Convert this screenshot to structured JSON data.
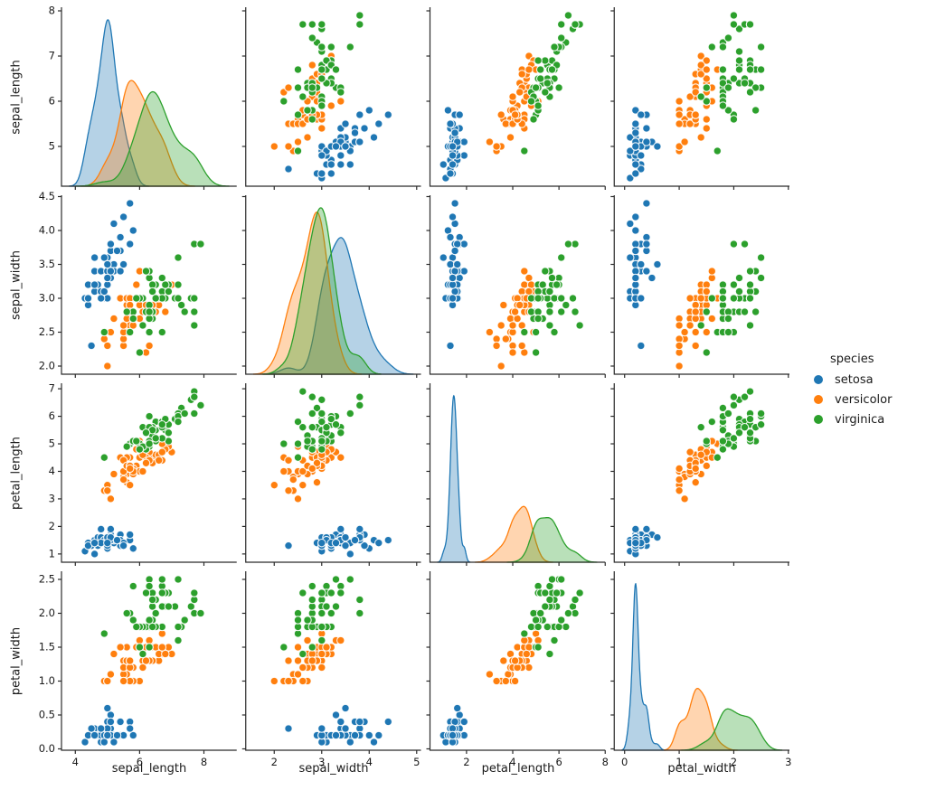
{
  "figure": {
    "background": "#ffffff",
    "axis_color": "#2b2b2b",
    "tick_label_color": "#1a1a1a"
  },
  "legend": {
    "title": "species",
    "entries": [
      {
        "label": "setosa",
        "color": "#1f77b4"
      },
      {
        "label": "versicolor",
        "color": "#ff7f0e"
      },
      {
        "label": "virginica",
        "color": "#2ca02c"
      }
    ]
  },
  "chart_data": {
    "type": "scatter",
    "layout": "pairplot-grid-4x4",
    "diagonal": "kde",
    "title": "",
    "variables": [
      "sepal_length",
      "sepal_width",
      "petal_length",
      "petal_width"
    ],
    "axes": {
      "sepal_length": {
        "x_range": [
          3.57,
          9.02
        ],
        "y_range": [
          4.12,
          8.08
        ],
        "x_ticks": [
          4,
          6,
          8
        ],
        "x_tick_labels": [
          "4",
          "6",
          "8"
        ],
        "y_ticks": [
          5,
          6,
          7,
          8
        ],
        "y_tick_labels": [
          "5",
          "6",
          "7",
          "8"
        ]
      },
      "sepal_width": {
        "x_range": [
          1.4,
          5.09
        ],
        "y_range": [
          1.88,
          4.52
        ],
        "x_ticks": [
          2,
          3,
          4,
          5
        ],
        "x_tick_labels": [
          "2",
          "3",
          "4",
          "5"
        ],
        "y_ticks": [
          2.0,
          2.5,
          3.0,
          3.5,
          4.0,
          4.5
        ],
        "y_tick_labels": [
          "2.0",
          "2.5",
          "3.0",
          "3.5",
          "4.0",
          "4.5"
        ]
      },
      "petal_length": {
        "x_range": [
          0.42,
          8.0
        ],
        "y_range": [
          0.7,
          7.2
        ],
        "x_ticks": [
          2,
          4,
          6,
          8
        ],
        "x_tick_labels": [
          "2",
          "4",
          "6",
          "8"
        ],
        "y_ticks": [
          1,
          2,
          3,
          4,
          5,
          6,
          7
        ],
        "y_tick_labels": [
          "1",
          "2",
          "3",
          "4",
          "5",
          "6",
          "7"
        ]
      },
      "petal_width": {
        "x_range": [
          -0.19,
          3.02
        ],
        "y_range": [
          -0.02,
          2.62
        ],
        "x_ticks": [
          0,
          1,
          2,
          3
        ],
        "x_tick_labels": [
          "0",
          "1",
          "2",
          "3"
        ],
        "y_ticks": [
          0.0,
          0.5,
          1.0,
          1.5,
          2.0,
          2.5
        ],
        "y_tick_labels": [
          "0.0",
          "0.5",
          "1.0",
          "1.5",
          "2.0",
          "2.5"
        ]
      }
    },
    "series": [
      {
        "name": "setosa",
        "color": "#1f77b4",
        "points": [
          [
            5.1,
            3.5,
            1.4,
            0.2
          ],
          [
            4.9,
            3.0,
            1.4,
            0.2
          ],
          [
            4.7,
            3.2,
            1.3,
            0.2
          ],
          [
            4.6,
            3.1,
            1.5,
            0.2
          ],
          [
            5.0,
            3.6,
            1.4,
            0.2
          ],
          [
            5.4,
            3.9,
            1.7,
            0.4
          ],
          [
            4.6,
            3.4,
            1.4,
            0.3
          ],
          [
            5.0,
            3.4,
            1.5,
            0.2
          ],
          [
            4.4,
            2.9,
            1.4,
            0.2
          ],
          [
            4.9,
            3.1,
            1.5,
            0.1
          ],
          [
            5.4,
            3.7,
            1.5,
            0.2
          ],
          [
            4.8,
            3.4,
            1.6,
            0.2
          ],
          [
            4.8,
            3.0,
            1.4,
            0.1
          ],
          [
            4.3,
            3.0,
            1.1,
            0.1
          ],
          [
            5.8,
            4.0,
            1.2,
            0.2
          ],
          [
            5.7,
            4.4,
            1.5,
            0.4
          ],
          [
            5.4,
            3.9,
            1.3,
            0.4
          ],
          [
            5.1,
            3.5,
            1.4,
            0.3
          ],
          [
            5.7,
            3.8,
            1.7,
            0.3
          ],
          [
            5.1,
            3.8,
            1.5,
            0.3
          ],
          [
            5.4,
            3.4,
            1.7,
            0.2
          ],
          [
            5.1,
            3.7,
            1.5,
            0.4
          ],
          [
            4.6,
            3.6,
            1.0,
            0.2
          ],
          [
            5.1,
            3.3,
            1.7,
            0.5
          ],
          [
            4.8,
            3.4,
            1.9,
            0.2
          ],
          [
            5.0,
            3.0,
            1.6,
            0.2
          ],
          [
            5.0,
            3.4,
            1.6,
            0.4
          ],
          [
            5.2,
            3.5,
            1.5,
            0.2
          ],
          [
            5.2,
            3.4,
            1.4,
            0.2
          ],
          [
            4.7,
            3.2,
            1.6,
            0.2
          ],
          [
            4.8,
            3.1,
            1.6,
            0.2
          ],
          [
            5.4,
            3.4,
            1.5,
            0.4
          ],
          [
            5.2,
            4.1,
            1.5,
            0.1
          ],
          [
            5.5,
            4.2,
            1.4,
            0.2
          ],
          [
            4.9,
            3.1,
            1.5,
            0.2
          ],
          [
            5.0,
            3.2,
            1.2,
            0.2
          ],
          [
            5.5,
            3.5,
            1.3,
            0.2
          ],
          [
            4.9,
            3.6,
            1.4,
            0.1
          ],
          [
            4.4,
            3.0,
            1.3,
            0.2
          ],
          [
            5.1,
            3.4,
            1.5,
            0.2
          ],
          [
            5.0,
            3.5,
            1.3,
            0.3
          ],
          [
            4.5,
            2.3,
            1.3,
            0.3
          ],
          [
            4.4,
            3.2,
            1.3,
            0.2
          ],
          [
            5.0,
            3.5,
            1.6,
            0.6
          ],
          [
            5.1,
            3.8,
            1.9,
            0.4
          ],
          [
            4.8,
            3.0,
            1.4,
            0.3
          ],
          [
            5.1,
            3.8,
            1.6,
            0.2
          ],
          [
            4.6,
            3.2,
            1.4,
            0.2
          ],
          [
            5.3,
            3.7,
            1.5,
            0.2
          ],
          [
            5.0,
            3.3,
            1.4,
            0.2
          ]
        ]
      },
      {
        "name": "versicolor",
        "color": "#ff7f0e",
        "points": [
          [
            7.0,
            3.2,
            4.7,
            1.4
          ],
          [
            6.4,
            3.2,
            4.5,
            1.5
          ],
          [
            6.9,
            3.1,
            4.9,
            1.5
          ],
          [
            5.5,
            2.3,
            4.0,
            1.3
          ],
          [
            6.5,
            2.8,
            4.6,
            1.5
          ],
          [
            5.7,
            2.8,
            4.5,
            1.3
          ],
          [
            6.3,
            3.3,
            4.7,
            1.6
          ],
          [
            4.9,
            2.4,
            3.3,
            1.0
          ],
          [
            6.6,
            2.9,
            4.6,
            1.3
          ],
          [
            5.2,
            2.7,
            3.9,
            1.4
          ],
          [
            5.0,
            2.0,
            3.5,
            1.0
          ],
          [
            5.9,
            3.0,
            4.2,
            1.5
          ],
          [
            6.0,
            2.2,
            4.0,
            1.0
          ],
          [
            6.1,
            2.9,
            4.7,
            1.4
          ],
          [
            5.6,
            2.9,
            3.6,
            1.3
          ],
          [
            6.7,
            3.1,
            4.4,
            1.4
          ],
          [
            5.6,
            3.0,
            4.5,
            1.5
          ],
          [
            5.8,
            2.7,
            4.1,
            1.0
          ],
          [
            6.2,
            2.2,
            4.5,
            1.5
          ],
          [
            5.6,
            2.5,
            3.9,
            1.1
          ],
          [
            5.9,
            3.2,
            4.8,
            1.8
          ],
          [
            6.1,
            2.8,
            4.0,
            1.3
          ],
          [
            6.3,
            2.5,
            4.9,
            1.5
          ],
          [
            6.1,
            2.8,
            4.7,
            1.2
          ],
          [
            6.4,
            2.9,
            4.3,
            1.3
          ],
          [
            6.6,
            3.0,
            4.4,
            1.4
          ],
          [
            6.8,
            2.8,
            4.8,
            1.4
          ],
          [
            6.7,
            3.0,
            5.0,
            1.7
          ],
          [
            6.0,
            2.9,
            4.5,
            1.5
          ],
          [
            5.7,
            2.6,
            3.5,
            1.0
          ],
          [
            5.5,
            2.4,
            3.8,
            1.1
          ],
          [
            5.5,
            2.4,
            3.7,
            1.0
          ],
          [
            5.8,
            2.7,
            3.9,
            1.2
          ],
          [
            6.0,
            2.7,
            5.1,
            1.6
          ],
          [
            5.4,
            3.0,
            4.5,
            1.5
          ],
          [
            6.0,
            3.4,
            4.5,
            1.6
          ],
          [
            6.7,
            3.1,
            4.7,
            1.5
          ],
          [
            6.3,
            2.3,
            4.4,
            1.3
          ],
          [
            5.6,
            3.0,
            4.1,
            1.3
          ],
          [
            5.5,
            2.5,
            4.0,
            1.3
          ],
          [
            5.5,
            2.6,
            4.4,
            1.2
          ],
          [
            6.1,
            3.0,
            4.6,
            1.4
          ],
          [
            5.8,
            2.6,
            4.0,
            1.2
          ],
          [
            5.0,
            2.3,
            3.3,
            1.0
          ],
          [
            5.6,
            2.7,
            4.2,
            1.3
          ],
          [
            5.7,
            3.0,
            4.2,
            1.2
          ],
          [
            5.7,
            2.9,
            4.2,
            1.3
          ],
          [
            6.2,
            2.9,
            4.3,
            1.3
          ],
          [
            5.1,
            2.5,
            3.0,
            1.1
          ],
          [
            5.7,
            2.8,
            4.1,
            1.3
          ]
        ]
      },
      {
        "name": "virginica",
        "color": "#2ca02c",
        "points": [
          [
            6.3,
            3.3,
            6.0,
            2.5
          ],
          [
            5.8,
            2.7,
            5.1,
            1.9
          ],
          [
            7.1,
            3.0,
            5.9,
            2.1
          ],
          [
            6.3,
            2.9,
            5.6,
            1.8
          ],
          [
            6.5,
            3.0,
            5.8,
            2.2
          ],
          [
            7.6,
            3.0,
            6.6,
            2.1
          ],
          [
            4.9,
            2.5,
            4.5,
            1.7
          ],
          [
            7.3,
            2.9,
            6.3,
            1.8
          ],
          [
            6.7,
            2.5,
            5.8,
            1.8
          ],
          [
            7.2,
            3.6,
            6.1,
            2.5
          ],
          [
            6.5,
            3.2,
            5.1,
            2.0
          ],
          [
            6.4,
            2.7,
            5.3,
            1.9
          ],
          [
            6.8,
            3.0,
            5.5,
            2.1
          ],
          [
            5.7,
            2.5,
            5.0,
            2.0
          ],
          [
            5.8,
            2.8,
            5.1,
            2.4
          ],
          [
            6.4,
            3.2,
            5.3,
            2.3
          ],
          [
            6.5,
            3.0,
            5.5,
            1.8
          ],
          [
            7.7,
            3.8,
            6.7,
            2.2
          ],
          [
            7.7,
            2.6,
            6.9,
            2.3
          ],
          [
            6.0,
            2.2,
            5.0,
            1.5
          ],
          [
            6.9,
            3.2,
            5.7,
            2.3
          ],
          [
            5.6,
            2.8,
            4.9,
            2.0
          ],
          [
            7.7,
            2.8,
            6.7,
            2.0
          ],
          [
            6.3,
            2.7,
            4.9,
            1.8
          ],
          [
            6.7,
            3.3,
            5.7,
            2.1
          ],
          [
            7.2,
            3.2,
            6.0,
            1.8
          ],
          [
            6.2,
            2.8,
            4.8,
            1.8
          ],
          [
            6.1,
            3.0,
            4.9,
            1.8
          ],
          [
            6.4,
            2.8,
            5.6,
            2.1
          ],
          [
            7.2,
            3.0,
            5.8,
            1.6
          ],
          [
            7.4,
            2.8,
            6.1,
            1.9
          ],
          [
            7.9,
            3.8,
            6.4,
            2.0
          ],
          [
            6.4,
            2.8,
            5.6,
            2.2
          ],
          [
            6.3,
            2.8,
            5.1,
            1.5
          ],
          [
            6.1,
            2.6,
            5.6,
            1.4
          ],
          [
            7.7,
            3.0,
            6.1,
            2.3
          ],
          [
            6.3,
            3.4,
            5.6,
            2.4
          ],
          [
            6.4,
            3.1,
            5.5,
            1.8
          ],
          [
            6.0,
            3.0,
            4.8,
            1.8
          ],
          [
            6.9,
            3.1,
            5.4,
            2.1
          ],
          [
            6.7,
            3.1,
            5.6,
            2.4
          ],
          [
            6.9,
            3.1,
            5.1,
            2.3
          ],
          [
            5.8,
            2.7,
            5.1,
            1.9
          ],
          [
            6.8,
            3.2,
            5.9,
            2.3
          ],
          [
            6.7,
            3.3,
            5.7,
            2.5
          ],
          [
            6.7,
            3.0,
            5.2,
            2.3
          ],
          [
            6.3,
            2.5,
            5.0,
            1.9
          ],
          [
            6.5,
            3.0,
            5.2,
            2.0
          ],
          [
            6.2,
            3.4,
            5.4,
            2.3
          ],
          [
            5.9,
            3.0,
            5.1,
            1.8
          ]
        ]
      }
    ]
  }
}
